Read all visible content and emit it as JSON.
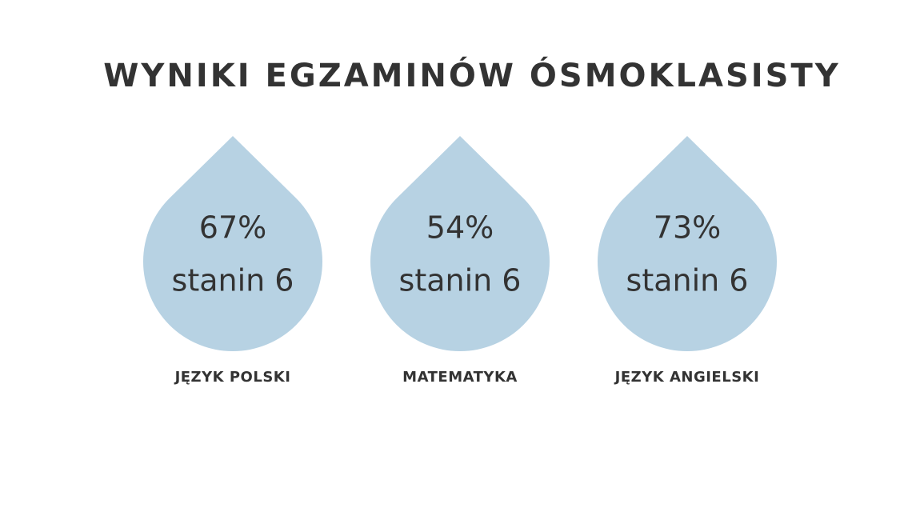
{
  "header": {
    "title": "WYNIKI EGZAMINÓW ÓSMOKLASISTY"
  },
  "items": [
    {
      "percent": "67%",
      "stanin": "stanin 6",
      "subject": "JĘZYK POLSKI"
    },
    {
      "percent": "54%",
      "stanin": "stanin 6",
      "subject": "MATEMATYKA"
    },
    {
      "percent": "73%",
      "stanin": "stanin 6",
      "subject": "JĘZYK ANGIELSKI"
    }
  ]
}
